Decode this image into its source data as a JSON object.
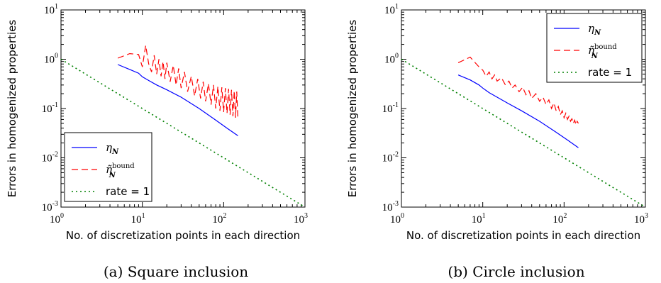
{
  "chart_data": [
    {
      "type": "line",
      "caption": "(a) Square inclusion",
      "xlabel": "No. of discretization points in each direction",
      "ylabel": "Errors in homogenized properties",
      "xscale": "log",
      "yscale": "log",
      "xlim": [
        1,
        1000
      ],
      "ylim": [
        0.001,
        10
      ],
      "legend_position": "lower-left",
      "xticks": [
        "10",
        "10",
        "10",
        "10"
      ],
      "xtick_exponents": [
        "0",
        "1",
        "2",
        "3"
      ],
      "yticks": [
        "10",
        "10",
        "10",
        "10",
        "10"
      ],
      "ytick_exponents": [
        "-3",
        "-2",
        "-1",
        "0",
        "1"
      ],
      "series": [
        {
          "name": "η_N",
          "legend_main": "η",
          "legend_sub": "N",
          "color": "#0000ff",
          "style": "solid",
          "x": [
            5,
            7,
            9,
            10,
            12,
            15,
            20,
            30,
            50,
            80,
            110,
            150
          ],
          "y": [
            0.78,
            0.62,
            0.52,
            0.44,
            0.37,
            0.3,
            0.24,
            0.17,
            0.1,
            0.058,
            0.04,
            0.028
          ]
        },
        {
          "name": "η̃_N^bound",
          "legend_main": "η̃",
          "legend_sub": "N",
          "legend_sup": "bound",
          "color": "#ff0000",
          "style": "dashed",
          "x": [
            5,
            7,
            9,
            10,
            11,
            12,
            13,
            14,
            15,
            16,
            17,
            18,
            19,
            20,
            22,
            24,
            26,
            28,
            30,
            33,
            36,
            40,
            44,
            48,
            52,
            56,
            60,
            65,
            70,
            75,
            80,
            85,
            90,
            95,
            100,
            105,
            110,
            115,
            120,
            125,
            130,
            135,
            140,
            145,
            150
          ],
          "y": [
            1.05,
            1.3,
            1.25,
            0.7,
            1.9,
            0.8,
            0.55,
            1.2,
            0.5,
            1.0,
            0.45,
            0.9,
            0.4,
            0.85,
            0.35,
            0.75,
            0.3,
            0.65,
            0.26,
            0.55,
            0.22,
            0.45,
            0.18,
            0.4,
            0.16,
            0.35,
            0.14,
            0.32,
            0.12,
            0.3,
            0.1,
            0.28,
            0.09,
            0.27,
            0.085,
            0.26,
            0.08,
            0.25,
            0.075,
            0.24,
            0.07,
            0.23,
            0.065,
            0.22,
            0.06
          ]
        },
        {
          "name": "rate = 1",
          "legend_text": "rate = 1",
          "color": "#008000",
          "style": "dotted",
          "x": [
            1,
            1000
          ],
          "y": [
            1,
            0.001
          ]
        }
      ]
    },
    {
      "type": "line",
      "caption": "(b) Circle inclusion",
      "xlabel": "No. of discretization points in each direction",
      "ylabel": "Errors in homogenized properties",
      "xscale": "log",
      "yscale": "log",
      "xlim": [
        1,
        1000
      ],
      "ylim": [
        0.001,
        10
      ],
      "legend_position": "upper-right",
      "xticks": [
        "10",
        "10",
        "10",
        "10"
      ],
      "xtick_exponents": [
        "0",
        "1",
        "2",
        "3"
      ],
      "yticks": [
        "10",
        "10",
        "10",
        "10",
        "10"
      ],
      "ytick_exponents": [
        "-3",
        "-2",
        "-1",
        "0",
        "1"
      ],
      "series": [
        {
          "name": "η_N",
          "legend_main": "η",
          "legend_sub": "N",
          "color": "#0000ff",
          "style": "solid",
          "x": [
            5,
            7,
            9,
            10,
            12,
            15,
            20,
            30,
            50,
            80,
            110,
            150
          ],
          "y": [
            0.48,
            0.38,
            0.3,
            0.26,
            0.21,
            0.17,
            0.13,
            0.09,
            0.055,
            0.033,
            0.023,
            0.016
          ]
        },
        {
          "name": "η̃_N^bound",
          "legend_main": "η̃",
          "legend_sub": "N",
          "legend_sup": "bound",
          "color": "#ff0000",
          "style": "dashed",
          "x": [
            5,
            7,
            9,
            10,
            11,
            12,
            13,
            14,
            15,
            17,
            19,
            21,
            23,
            25,
            28,
            31,
            34,
            37,
            40,
            45,
            50,
            55,
            60,
            65,
            70,
            75,
            80,
            85,
            90,
            95,
            100,
            105,
            110,
            115,
            120,
            125,
            130,
            135,
            140,
            145,
            150
          ],
          "y": [
            0.85,
            1.1,
            0.7,
            0.6,
            0.45,
            0.55,
            0.4,
            0.48,
            0.36,
            0.42,
            0.3,
            0.36,
            0.26,
            0.3,
            0.22,
            0.27,
            0.19,
            0.23,
            0.16,
            0.2,
            0.14,
            0.17,
            0.12,
            0.15,
            0.1,
            0.13,
            0.09,
            0.11,
            0.075,
            0.09,
            0.065,
            0.08,
            0.06,
            0.07,
            0.055,
            0.062,
            0.05,
            0.058,
            0.047,
            0.055,
            0.05
          ]
        },
        {
          "name": "rate = 1",
          "legend_text": "rate = 1",
          "color": "#008000",
          "style": "dotted",
          "x": [
            1,
            1000
          ],
          "y": [
            1,
            0.001
          ]
        }
      ]
    }
  ]
}
